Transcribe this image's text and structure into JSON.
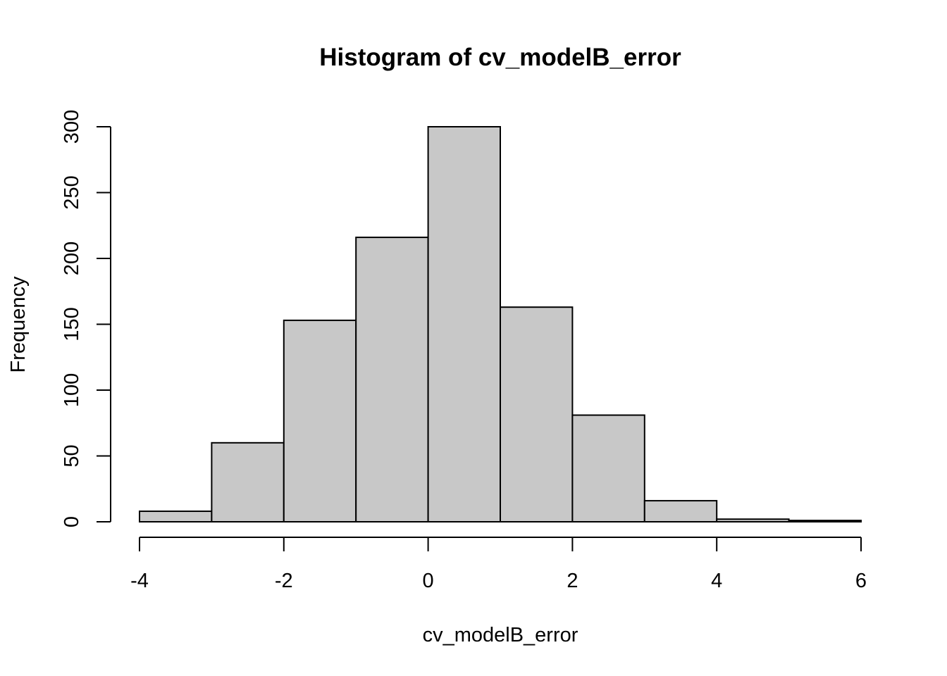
{
  "chart_data": {
    "type": "bar",
    "subtype": "histogram",
    "title": "Histogram of cv_modelB_error",
    "xlabel": "cv_modelB_error",
    "ylabel": "Frequency",
    "bins": [
      {
        "start": -4,
        "end": -3,
        "count": 8
      },
      {
        "start": -3,
        "end": -2,
        "count": 60
      },
      {
        "start": -2,
        "end": -1,
        "count": 153
      },
      {
        "start": -1,
        "end": 0,
        "count": 216
      },
      {
        "start": 0,
        "end": 1,
        "count": 300
      },
      {
        "start": 1,
        "end": 2,
        "count": 163
      },
      {
        "start": 2,
        "end": 3,
        "count": 81
      },
      {
        "start": 3,
        "end": 4,
        "count": 16
      },
      {
        "start": 4,
        "end": 5,
        "count": 2
      },
      {
        "start": 5,
        "end": 6,
        "count": 1
      }
    ],
    "xlim": [
      -4,
      6
    ],
    "ylim": [
      0,
      300
    ],
    "x_ticks": [
      "-4",
      "-2",
      "0",
      "2",
      "4",
      "6"
    ],
    "y_ticks": [
      "0",
      "50",
      "100",
      "150",
      "200",
      "250",
      "300"
    ],
    "grid": false,
    "colors": {
      "bar_fill": "#c8c8c8",
      "bar_stroke": "#000000"
    }
  }
}
